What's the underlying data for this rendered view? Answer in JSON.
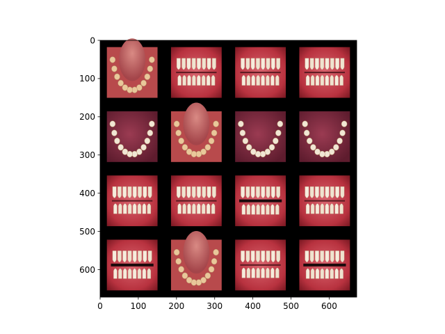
{
  "chart_data": {
    "type": "image_grid",
    "title": "",
    "xlabel": "",
    "ylabel": "",
    "xlim": [
      0,
      672
    ],
    "ylim": [
      672,
      0
    ],
    "grid": false,
    "x_ticks": [
      0,
      100,
      200,
      300,
      400,
      500,
      600
    ],
    "y_ticks": [
      0,
      100,
      200,
      300,
      400,
      500,
      600
    ],
    "background_color": "#000000",
    "tile_rows": 4,
    "tile_cols": 4,
    "tiles": [
      {
        "row": 0,
        "col": 0,
        "view": "lower-occlusal"
      },
      {
        "row": 0,
        "col": 1,
        "view": "frontal"
      },
      {
        "row": 0,
        "col": 2,
        "view": "frontal"
      },
      {
        "row": 0,
        "col": 3,
        "view": "frontal"
      },
      {
        "row": 1,
        "col": 0,
        "view": "upper-occlusal"
      },
      {
        "row": 1,
        "col": 1,
        "view": "lower-occlusal"
      },
      {
        "row": 1,
        "col": 2,
        "view": "upper-occlusal"
      },
      {
        "row": 1,
        "col": 3,
        "view": "upper-occlusal"
      },
      {
        "row": 2,
        "col": 0,
        "view": "frontal"
      },
      {
        "row": 2,
        "col": 1,
        "view": "frontal"
      },
      {
        "row": 2,
        "col": 2,
        "view": "frontal-open"
      },
      {
        "row": 2,
        "col": 3,
        "view": "frontal"
      },
      {
        "row": 3,
        "col": 0,
        "view": "frontal-open"
      },
      {
        "row": 3,
        "col": 1,
        "view": "lower-occlusal"
      },
      {
        "row": 3,
        "col": 2,
        "view": "frontal"
      },
      {
        "row": 3,
        "col": 3,
        "view": "frontal-open"
      }
    ]
  }
}
